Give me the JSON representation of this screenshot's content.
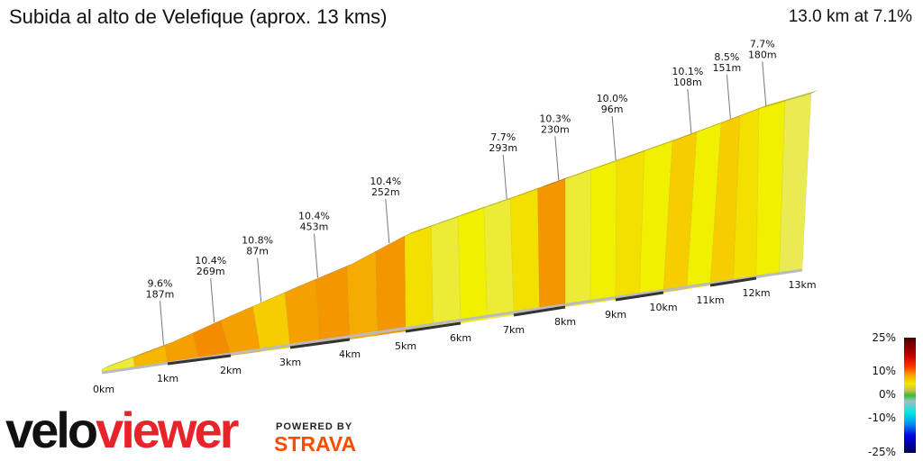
{
  "header": {
    "title": "Subida al alto de Velefique (aprox. 13 kms)",
    "summary": "13.0 km at 7.1%"
  },
  "chart_data": {
    "type": "area",
    "title": "Subida al alto de Velefique (aprox. 13 kms)",
    "x_ticks": [
      "0km",
      "1km",
      "2km",
      "3km",
      "4km",
      "5km",
      "6km",
      "7km",
      "8km",
      "9km",
      "10km",
      "11km",
      "12km",
      "13km"
    ],
    "xlim": [
      0,
      13
    ],
    "segment_length_km": 0.5,
    "segment_gradients_pct": [
      4,
      8,
      9,
      10,
      9,
      7,
      9,
      9.5,
      8.5,
      9.5,
      6,
      4,
      5,
      4,
      6,
      9.5,
      4,
      5,
      6,
      5,
      7,
      5,
      7,
      6,
      5,
      3.5
    ],
    "annotations": [
      {
        "km": 0.95,
        "gradient": "9.6%",
        "length": "187m"
      },
      {
        "km": 1.85,
        "gradient": "10.4%",
        "length": "269m"
      },
      {
        "km": 2.6,
        "gradient": "10.8%",
        "length": "87m"
      },
      {
        "km": 3.5,
        "gradient": "10.4%",
        "length": "453m"
      },
      {
        "km": 4.7,
        "gradient": "10.4%",
        "length": "252m"
      },
      {
        "km": 6.9,
        "gradient": "7.7%",
        "length": "293m"
      },
      {
        "km": 7.85,
        "gradient": "10.3%",
        "length": "230m"
      },
      {
        "km": 8.95,
        "gradient": "10.0%",
        "length": "96m"
      },
      {
        "km": 10.35,
        "gradient": "10.1%",
        "length": "108m"
      },
      {
        "km": 11.2,
        "gradient": "8.5%",
        "length": "151m"
      },
      {
        "km": 12.1,
        "gradient": "7.7%",
        "length": "180m"
      }
    ],
    "legend": {
      "labels": [
        "25%",
        "10%",
        "0%",
        "-10%",
        "-25%"
      ],
      "placement": "bottom-right"
    }
  },
  "branding": {
    "logo_a": "velo",
    "logo_b": "viewer",
    "powered": "POWERED BY",
    "strava": "STRAVA"
  }
}
